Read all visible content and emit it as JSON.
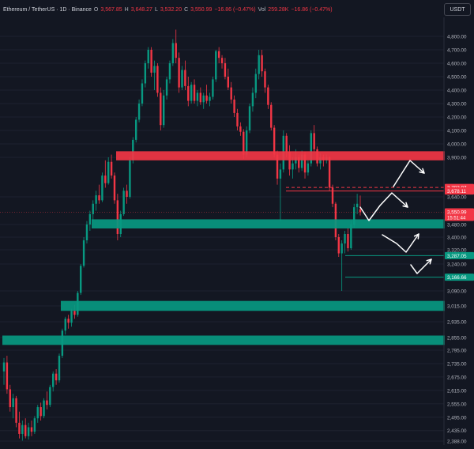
{
  "header": {
    "symbol": "Ethereum / TetherUS · 1D · Binance",
    "o_label": "O",
    "o_value": "3,567.85",
    "h_label": "H",
    "h_value": "3,648.27",
    "l_label": "L",
    "l_value": "3,532.20",
    "c_label": "C",
    "c_value": "3,550.99",
    "change": "−16.86 (−0.47%)",
    "vol_label": "Vol",
    "vol_value": "259.28K",
    "vol_change": "−16.86 (−0.47%)"
  },
  "currency_button": "USDT",
  "chart_data": {
    "type": "candlestick",
    "price_axis": {
      "ticks": [
        {
          "label": "4,800.00",
          "value": 4800
        },
        {
          "label": "4,700.00",
          "value": 4700
        },
        {
          "label": "4,600.00",
          "value": 4600
        },
        {
          "label": "4,500.00",
          "value": 4500
        },
        {
          "label": "4,400.00",
          "value": 4400
        },
        {
          "label": "4,300.00",
          "value": 4300
        },
        {
          "label": "4,200.00",
          "value": 4200
        },
        {
          "label": "4,100.00",
          "value": 4100
        },
        {
          "label": "4,000.00",
          "value": 4000
        },
        {
          "label": "3,900.00",
          "value": 3900
        },
        {
          "label": "3,640.00",
          "value": 3640
        },
        {
          "label": "3,480.00",
          "value": 3480
        },
        {
          "label": "3,400.00",
          "value": 3400
        },
        {
          "label": "3,320.00",
          "value": 3320
        },
        {
          "label": "3,240.00",
          "value": 3240
        },
        {
          "label": "3,090.00",
          "value": 3090
        },
        {
          "label": "3,015.00",
          "value": 3015
        },
        {
          "label": "2,935.00",
          "value": 2935
        },
        {
          "label": "2,855.00",
          "value": 2855
        },
        {
          "label": "2,795.00",
          "value": 2795
        },
        {
          "label": "2,735.00",
          "value": 2735
        },
        {
          "label": "2,675.00",
          "value": 2675
        },
        {
          "label": "2,615.00",
          "value": 2615
        },
        {
          "label": "2,555.00",
          "value": 2555
        },
        {
          "label": "2,495.00",
          "value": 2495
        },
        {
          "label": "2,435.00",
          "value": 2435
        },
        {
          "label": "2,388.00",
          "value": 2388
        }
      ]
    },
    "price_tags": [
      {
        "label": "3,702.07",
        "value": 3702.07,
        "color": "#f23645"
      },
      {
        "label": "3,678.11",
        "value": 3678.11,
        "color": "#f23645"
      },
      {
        "label": "3,550.99",
        "sub": "15:51:44",
        "value": 3550.99,
        "color": "#f23645"
      },
      {
        "label": "3,287.05",
        "value": 3287.05,
        "color": "#089981"
      },
      {
        "label": "3,166.66",
        "value": 3166.66,
        "color": "#089981"
      }
    ],
    "zones": [
      {
        "kind": "resistance",
        "color": "#f23645",
        "from": 3880,
        "to": 3945
      },
      {
        "kind": "support",
        "color": "#089981",
        "from": 3455,
        "to": 3510
      },
      {
        "kind": "support",
        "color": "#089981",
        "from": 2990,
        "to": 3040
      },
      {
        "kind": "support",
        "color": "#089981",
        "from": 2820,
        "to": 2865
      }
    ],
    "candles": [
      {
        "o": 2700,
        "h": 2760,
        "l": 2640,
        "c": 2740
      },
      {
        "o": 2740,
        "h": 2770,
        "l": 2600,
        "c": 2620
      },
      {
        "o": 2620,
        "h": 2640,
        "l": 2520,
        "c": 2540
      },
      {
        "o": 2540,
        "h": 2600,
        "l": 2490,
        "c": 2580
      },
      {
        "o": 2580,
        "h": 2590,
        "l": 2450,
        "c": 2470
      },
      {
        "o": 2470,
        "h": 2520,
        "l": 2400,
        "c": 2420
      },
      {
        "o": 2420,
        "h": 2480,
        "l": 2390,
        "c": 2460
      },
      {
        "o": 2460,
        "h": 2490,
        "l": 2400,
        "c": 2410
      },
      {
        "o": 2410,
        "h": 2470,
        "l": 2395,
        "c": 2450
      },
      {
        "o": 2450,
        "h": 2480,
        "l": 2410,
        "c": 2430
      },
      {
        "o": 2430,
        "h": 2500,
        "l": 2420,
        "c": 2490
      },
      {
        "o": 2490,
        "h": 2550,
        "l": 2470,
        "c": 2540
      },
      {
        "o": 2540,
        "h": 2560,
        "l": 2480,
        "c": 2500
      },
      {
        "o": 2500,
        "h": 2580,
        "l": 2490,
        "c": 2570
      },
      {
        "o": 2570,
        "h": 2610,
        "l": 2530,
        "c": 2550
      },
      {
        "o": 2550,
        "h": 2640,
        "l": 2540,
        "c": 2630
      },
      {
        "o": 2630,
        "h": 2700,
        "l": 2610,
        "c": 2690
      },
      {
        "o": 2690,
        "h": 2710,
        "l": 2640,
        "c": 2660
      },
      {
        "o": 2660,
        "h": 2780,
        "l": 2650,
        "c": 2770
      },
      {
        "o": 2770,
        "h": 2900,
        "l": 2760,
        "c": 2890
      },
      {
        "o": 2890,
        "h": 2960,
        "l": 2870,
        "c": 2950
      },
      {
        "o": 2950,
        "h": 2970,
        "l": 2900,
        "c": 2930
      },
      {
        "o": 2930,
        "h": 3000,
        "l": 2910,
        "c": 2990
      },
      {
        "o": 2990,
        "h": 3020,
        "l": 2950,
        "c": 2970
      },
      {
        "o": 2970,
        "h": 3090,
        "l": 2960,
        "c": 3080
      },
      {
        "o": 3080,
        "h": 3240,
        "l": 3070,
        "c": 3230
      },
      {
        "o": 3230,
        "h": 3400,
        "l": 3220,
        "c": 3380
      },
      {
        "o": 3380,
        "h": 3500,
        "l": 3360,
        "c": 3480
      },
      {
        "o": 3480,
        "h": 3560,
        "l": 3440,
        "c": 3540
      },
      {
        "o": 3540,
        "h": 3620,
        "l": 3500,
        "c": 3600
      },
      {
        "o": 3600,
        "h": 3680,
        "l": 3560,
        "c": 3650
      },
      {
        "o": 3650,
        "h": 3720,
        "l": 3600,
        "c": 3620
      },
      {
        "o": 3620,
        "h": 3800,
        "l": 3610,
        "c": 3780
      },
      {
        "o": 3780,
        "h": 3880,
        "l": 3700,
        "c": 3730
      },
      {
        "o": 3730,
        "h": 3900,
        "l": 3720,
        "c": 3870
      },
      {
        "o": 3870,
        "h": 3920,
        "l": 3760,
        "c": 3780
      },
      {
        "o": 3780,
        "h": 3800,
        "l": 3600,
        "c": 3620
      },
      {
        "o": 3620,
        "h": 3660,
        "l": 3380,
        "c": 3420
      },
      {
        "o": 3420,
        "h": 3560,
        "l": 3400,
        "c": 3540
      },
      {
        "o": 3540,
        "h": 3700,
        "l": 3530,
        "c": 3680
      },
      {
        "o": 3680,
        "h": 3720,
        "l": 3600,
        "c": 3640
      },
      {
        "o": 3640,
        "h": 3900,
        "l": 3630,
        "c": 3880
      },
      {
        "o": 3880,
        "h": 4050,
        "l": 3860,
        "c": 4030
      },
      {
        "o": 4030,
        "h": 4200,
        "l": 4010,
        "c": 4180
      },
      {
        "o": 4180,
        "h": 4330,
        "l": 4160,
        "c": 4300
      },
      {
        "o": 4300,
        "h": 4480,
        "l": 4280,
        "c": 4450
      },
      {
        "o": 4450,
        "h": 4620,
        "l": 4420,
        "c": 4600
      },
      {
        "o": 4600,
        "h": 4720,
        "l": 4560,
        "c": 4700
      },
      {
        "o": 4700,
        "h": 4720,
        "l": 4500,
        "c": 4530
      },
      {
        "o": 4530,
        "h": 4620,
        "l": 4400,
        "c": 4580
      },
      {
        "o": 4580,
        "h": 4600,
        "l": 4350,
        "c": 4380
      },
      {
        "o": 4380,
        "h": 4420,
        "l": 4100,
        "c": 4140
      },
      {
        "o": 4140,
        "h": 4400,
        "l": 4120,
        "c": 4360
      },
      {
        "o": 4360,
        "h": 4500,
        "l": 4330,
        "c": 4480
      },
      {
        "o": 4480,
        "h": 4620,
        "l": 4450,
        "c": 4600
      },
      {
        "o": 4600,
        "h": 4780,
        "l": 4580,
        "c": 4750
      },
      {
        "o": 4750,
        "h": 4850,
        "l": 4600,
        "c": 4640
      },
      {
        "o": 4640,
        "h": 4680,
        "l": 4380,
        "c": 4420
      },
      {
        "o": 4420,
        "h": 4580,
        "l": 4400,
        "c": 4550
      },
      {
        "o": 4550,
        "h": 4620,
        "l": 4400,
        "c": 4430
      },
      {
        "o": 4430,
        "h": 4500,
        "l": 4280,
        "c": 4320
      },
      {
        "o": 4320,
        "h": 4460,
        "l": 4300,
        "c": 4440
      },
      {
        "o": 4440,
        "h": 4480,
        "l": 4300,
        "c": 4320
      },
      {
        "o": 4320,
        "h": 4400,
        "l": 4280,
        "c": 4380
      },
      {
        "o": 4380,
        "h": 4420,
        "l": 4290,
        "c": 4310
      },
      {
        "o": 4310,
        "h": 4380,
        "l": 4260,
        "c": 4360
      },
      {
        "o": 4360,
        "h": 4440,
        "l": 4300,
        "c": 4320
      },
      {
        "o": 4320,
        "h": 4380,
        "l": 4280,
        "c": 4350
      },
      {
        "o": 4350,
        "h": 4500,
        "l": 4330,
        "c": 4480
      },
      {
        "o": 4480,
        "h": 4700,
        "l": 4460,
        "c": 4690
      },
      {
        "o": 4690,
        "h": 4720,
        "l": 4600,
        "c": 4640
      },
      {
        "o": 4640,
        "h": 4660,
        "l": 4560,
        "c": 4600
      },
      {
        "o": 4600,
        "h": 4640,
        "l": 4480,
        "c": 4500
      },
      {
        "o": 4500,
        "h": 4560,
        "l": 4400,
        "c": 4420
      },
      {
        "o": 4420,
        "h": 4460,
        "l": 4300,
        "c": 4330
      },
      {
        "o": 4330,
        "h": 4360,
        "l": 4200,
        "c": 4230
      },
      {
        "o": 4230,
        "h": 4260,
        "l": 4100,
        "c": 4130
      },
      {
        "o": 4130,
        "h": 4160,
        "l": 4060,
        "c": 4090
      },
      {
        "o": 4090,
        "h": 4110,
        "l": 3890,
        "c": 3920
      },
      {
        "o": 3920,
        "h": 4130,
        "l": 3900,
        "c": 4100
      },
      {
        "o": 4100,
        "h": 4300,
        "l": 4080,
        "c": 4280
      },
      {
        "o": 4280,
        "h": 4420,
        "l": 4240,
        "c": 4380
      },
      {
        "o": 4380,
        "h": 4560,
        "l": 4340,
        "c": 4520
      },
      {
        "o": 4520,
        "h": 4700,
        "l": 4480,
        "c": 4660
      },
      {
        "o": 4660,
        "h": 4700,
        "l": 4500,
        "c": 4540
      },
      {
        "o": 4540,
        "h": 4560,
        "l": 4380,
        "c": 4420
      },
      {
        "o": 4420,
        "h": 4440,
        "l": 4260,
        "c": 4290
      },
      {
        "o": 4290,
        "h": 4310,
        "l": 4100,
        "c": 4120
      },
      {
        "o": 4120,
        "h": 4140,
        "l": 3900,
        "c": 3920
      },
      {
        "o": 3920,
        "h": 3950,
        "l": 3720,
        "c": 3760
      },
      {
        "o": 3760,
        "h": 3860,
        "l": 3500,
        "c": 3820
      },
      {
        "o": 3820,
        "h": 4100,
        "l": 3800,
        "c": 4060
      },
      {
        "o": 4060,
        "h": 4080,
        "l": 3900,
        "c": 3940
      },
      {
        "o": 3940,
        "h": 3990,
        "l": 3780,
        "c": 3820
      },
      {
        "o": 3820,
        "h": 3900,
        "l": 3760,
        "c": 3860
      },
      {
        "o": 3860,
        "h": 3960,
        "l": 3820,
        "c": 3900
      },
      {
        "o": 3900,
        "h": 3920,
        "l": 3800,
        "c": 3830
      },
      {
        "o": 3830,
        "h": 3950,
        "l": 3810,
        "c": 3920
      },
      {
        "o": 3920,
        "h": 3940,
        "l": 3760,
        "c": 3800
      },
      {
        "o": 3800,
        "h": 3880,
        "l": 3780,
        "c": 3860
      },
      {
        "o": 3860,
        "h": 4100,
        "l": 3840,
        "c": 4080
      },
      {
        "o": 4080,
        "h": 4140,
        "l": 3940,
        "c": 3960
      },
      {
        "o": 3960,
        "h": 3980,
        "l": 3840,
        "c": 3860
      },
      {
        "o": 3860,
        "h": 3930,
        "l": 3820,
        "c": 3900
      },
      {
        "o": 3900,
        "h": 3920,
        "l": 3840,
        "c": 3880
      },
      {
        "o": 3880,
        "h": 3920,
        "l": 3860,
        "c": 3900
      },
      {
        "o": 3900,
        "h": 3910,
        "l": 3680,
        "c": 3700
      },
      {
        "o": 3700,
        "h": 3720,
        "l": 3580,
        "c": 3600
      },
      {
        "o": 3600,
        "h": 3610,
        "l": 3380,
        "c": 3400
      },
      {
        "o": 3400,
        "h": 3420,
        "l": 3280,
        "c": 3300
      },
      {
        "o": 3300,
        "h": 3380,
        "l": 3090,
        "c": 3360
      },
      {
        "o": 3360,
        "h": 3440,
        "l": 3300,
        "c": 3420
      },
      {
        "o": 3420,
        "h": 3460,
        "l": 3310,
        "c": 3330
      },
      {
        "o": 3330,
        "h": 3500,
        "l": 3320,
        "c": 3480
      },
      {
        "o": 3480,
        "h": 3600,
        "l": 3460,
        "c": 3580
      },
      {
        "o": 3580,
        "h": 3660,
        "l": 3540,
        "c": 3600
      },
      {
        "o": 3567.85,
        "h": 3648.27,
        "l": 3532.2,
        "c": 3550.99
      }
    ]
  }
}
